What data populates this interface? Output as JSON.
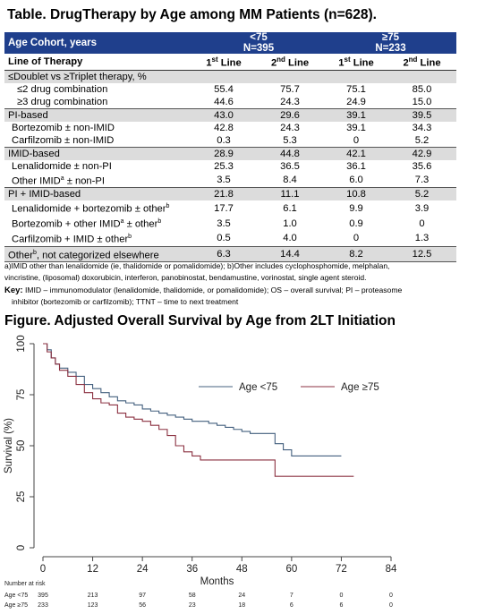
{
  "table": {
    "title": "Table. DrugTherapy by Age among MM Patients (n=628).",
    "header": {
      "row_label": "Age Cohort, years",
      "cohort1_line1": "<75",
      "cohort1_line2": "N=395",
      "cohort2_line1": "≥75",
      "cohort2_line2": "N=233"
    },
    "subheader": {
      "row_label": "Line of Therapy",
      "first_line": "1",
      "first_sup": "st",
      "first_rest": " Line",
      "second_line": "2",
      "second_sup": "nd",
      "second_rest": " Line"
    },
    "rows": [
      {
        "label": "≤Doublet vs ≥Triplet therapy, %",
        "v": [
          "",
          "",
          "",
          ""
        ]
      },
      {
        "label": "≤2 drug combination",
        "v": [
          "55.4",
          "75.7",
          "75.1",
          "85.0"
        ]
      },
      {
        "label": "≥3 drug combination",
        "v": [
          "44.6",
          "24.3",
          "24.9",
          "15.0"
        ]
      },
      {
        "label": "PI-based",
        "v": [
          "43.0",
          "29.6",
          "39.1",
          "39.5"
        ]
      },
      {
        "label": "Bortezomib ± non-IMID",
        "v": [
          "42.8",
          "24.3",
          "39.1",
          "34.3"
        ]
      },
      {
        "label": "Carfilzomib ± non-IMID",
        "v": [
          "0.3",
          "5.3",
          "0",
          "5.2"
        ]
      },
      {
        "label": "IMID-based",
        "v": [
          "28.9",
          "44.8",
          "42.1",
          "42.9"
        ]
      },
      {
        "label": "Lenalidomide ± non-PI",
        "v": [
          "25.3",
          "36.5",
          "36.1",
          "35.6"
        ]
      },
      {
        "label_pre": "Other IMID",
        "label_sup": "a",
        "label_post": " ± non-PI",
        "v": [
          "3.5",
          "8.4",
          "6.0",
          "7.3"
        ]
      },
      {
        "label": "PI + IMID-based",
        "v": [
          "21.8",
          "11.1",
          "10.8",
          "5.2"
        ]
      },
      {
        "label_pre": "Lenalidomide + bortezomib ± other",
        "label_sup": "b",
        "label_post": "",
        "v": [
          "17.7",
          "6.1",
          "9.9",
          "3.9"
        ]
      },
      {
        "label_pre": "Bortezomib + other IMID",
        "label_sup": "a",
        "label_post": " ± other",
        "label_sup2": "b",
        "v": [
          "3.5",
          "1.0",
          "0.9",
          "0"
        ]
      },
      {
        "label_pre": "Carfilzomib + IMID ± other",
        "label_sup": "b",
        "label_post": "",
        "v": [
          "0.5",
          "4.0",
          "0",
          "1.3"
        ]
      },
      {
        "label_pre": "Other",
        "label_sup": "b",
        "label_post": ", not categorized elsewhere",
        "v": [
          "6.3",
          "14.4",
          "8.2",
          "12.5"
        ]
      }
    ]
  },
  "footnote_a": "a)IMID other than lenalidomide (ie, thalidomide or pomalidomide); b)Other includes cyclophosphomide, melphalan,",
  "footnote_b": "vincristine, (liposomal) doxorubicin, interferon, panobinostat, bendamustine, vorinostat, single agent steroid.",
  "key_label": "Key:",
  "key_text_1": " IMID – immunomodulator (lenalidomide, thalidomide, or pomalidomide); OS – overall survival; PI – proteasome",
  "key_text_2": "inhibitor (bortezomib or carfilzomib); TTNT – time to next treatment",
  "figure": {
    "title": "Figure. Adjusted Overall Survival by Age from 2LT Initiation",
    "risk_header": "Number at risk",
    "risk_rows": [
      {
        "label": "Age <75",
        "values": [
          "395",
          "213",
          "97",
          "58",
          "24",
          "7",
          "0",
          "0"
        ]
      },
      {
        "label": "Age ≥75",
        "values": [
          "233",
          "123",
          "56",
          "23",
          "18",
          "6",
          "6",
          "0"
        ]
      }
    ]
  },
  "chart_data": {
    "type": "line",
    "title": "",
    "xlabel": "Months",
    "ylabel": "Survival (%)",
    "xlim": [
      0,
      84
    ],
    "ylim": [
      0,
      100
    ],
    "xticks": [
      0,
      12,
      24,
      36,
      48,
      60,
      72,
      84
    ],
    "yticks": [
      0,
      25,
      50,
      75,
      100
    ],
    "grid": false,
    "legend_position": "inside, upper right",
    "series": [
      {
        "name": "Age <75",
        "color": "#44607f",
        "points": [
          [
            0,
            100
          ],
          [
            1,
            97
          ],
          [
            2,
            93
          ],
          [
            3,
            90
          ],
          [
            4,
            88
          ],
          [
            6,
            86
          ],
          [
            8,
            84
          ],
          [
            10,
            80
          ],
          [
            12,
            78
          ],
          [
            14,
            76
          ],
          [
            16,
            74
          ],
          [
            18,
            72
          ],
          [
            20,
            71
          ],
          [
            22,
            70
          ],
          [
            24,
            68
          ],
          [
            26,
            67
          ],
          [
            28,
            66
          ],
          [
            30,
            65
          ],
          [
            32,
            64
          ],
          [
            34,
            63
          ],
          [
            36,
            62
          ],
          [
            38,
            62
          ],
          [
            40,
            61
          ],
          [
            42,
            60
          ],
          [
            44,
            59
          ],
          [
            46,
            58
          ],
          [
            48,
            57
          ],
          [
            50,
            56
          ],
          [
            52,
            56
          ],
          [
            54,
            56
          ],
          [
            56,
            51
          ],
          [
            58,
            48
          ],
          [
            60,
            45
          ],
          [
            62,
            45
          ],
          [
            66,
            45
          ],
          [
            70,
            45
          ],
          [
            72,
            45
          ]
        ]
      },
      {
        "name": "Age ≥75",
        "color": "#8b3040",
        "points": [
          [
            0,
            100
          ],
          [
            1,
            96
          ],
          [
            2,
            93
          ],
          [
            3,
            90
          ],
          [
            4,
            87
          ],
          [
            6,
            84
          ],
          [
            8,
            80
          ],
          [
            10,
            76
          ],
          [
            12,
            73
          ],
          [
            14,
            71
          ],
          [
            16,
            70
          ],
          [
            18,
            66
          ],
          [
            20,
            64
          ],
          [
            22,
            63
          ],
          [
            24,
            62
          ],
          [
            26,
            60
          ],
          [
            28,
            58
          ],
          [
            30,
            55
          ],
          [
            32,
            50
          ],
          [
            34,
            47
          ],
          [
            36,
            45
          ],
          [
            38,
            43
          ],
          [
            40,
            43
          ],
          [
            42,
            43
          ],
          [
            44,
            43
          ],
          [
            46,
            43
          ],
          [
            48,
            43
          ],
          [
            50,
            43
          ],
          [
            54,
            43
          ],
          [
            56,
            35
          ],
          [
            60,
            35
          ],
          [
            66,
            35
          ],
          [
            72,
            35
          ],
          [
            75,
            35
          ]
        ]
      }
    ]
  }
}
